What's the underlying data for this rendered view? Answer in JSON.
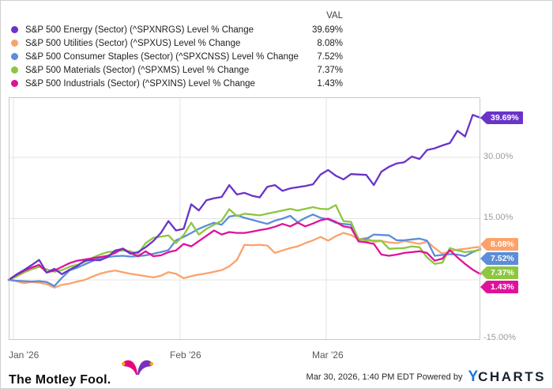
{
  "legend": {
    "val_header": "VAL"
  },
  "chart_data": {
    "type": "line",
    "title": "",
    "x_axis": {
      "tick_labels": [
        "Jan '26",
        "Feb '26",
        "Mar '26"
      ]
    },
    "y_axis": {
      "tick_labels": [
        "30.00%",
        "15.00%",
        "-15.00%"
      ],
      "ticks_pct": [
        30,
        15,
        -15
      ],
      "range_pct": [
        -15.0,
        44.7
      ],
      "unit": "%",
      "grid": true
    },
    "legend_position": "top",
    "series": [
      {
        "name": "S&P 500 Energy (Sector) (^SPXNRGS) Level % Change",
        "val": "39.69%",
        "color": "#6934c8",
        "values": [
          0,
          1.3,
          2.4,
          3.6,
          4.9,
          1.8,
          2.7,
          1.4,
          2.5,
          3.4,
          4.7,
          4.9,
          4.8,
          5.6,
          7.2,
          7.6,
          6.4,
          6.8,
          8.0,
          9.5,
          11.5,
          14.4,
          12.1,
          12.5,
          18.5,
          17.0,
          19.5,
          20.0,
          20.3,
          23.2,
          20.9,
          21.3,
          20.6,
          20.2,
          22.8,
          23.2,
          21.8,
          22.4,
          22.7,
          23.0,
          23.4,
          25.8,
          26.9,
          25.5,
          24.6,
          25.9,
          25.8,
          25.7,
          23.2,
          26.5,
          27.7,
          28.5,
          28.8,
          30.2,
          29.6,
          31.8,
          32.2,
          32.9,
          33.5,
          36.5,
          35.1,
          40.4,
          39.69
        ]
      },
      {
        "name": "S&P 500 Utilities (Sector) (^SPXUS) Level % Change",
        "val": "8.08%",
        "color": "#fba26b",
        "values": [
          0,
          -0.3,
          -0.8,
          -0.5,
          -0.7,
          -1.0,
          -1.9,
          -1.2,
          -0.9,
          -0.4,
          0.0,
          0.8,
          1.5,
          2.0,
          2.3,
          1.9,
          1.5,
          1.2,
          0.9,
          0.6,
          1.0,
          1.9,
          1.5,
          0.4,
          0.9,
          1.3,
          1.6,
          2.0,
          2.4,
          3.3,
          4.9,
          8.6,
          8.5,
          8.6,
          8.4,
          6.6,
          7.2,
          7.8,
          8.2,
          9.0,
          9.7,
          10.5,
          9.6,
          10.7,
          11.5,
          11.0,
          9.9,
          10.3,
          9.3,
          9.5,
          9.2,
          9.0,
          9.5,
          9.2,
          8.8,
          9.4,
          7.8,
          6.4,
          7.0,
          7.4,
          7.6,
          7.9,
          8.08
        ]
      },
      {
        "name": "S&P 500 Consumer Staples (Sector) (^SPXCNSS) Level % Change",
        "val": "7.52%",
        "color": "#5b8dd9",
        "values": [
          0,
          -0.2,
          -0.3,
          -0.4,
          -0.3,
          -0.5,
          -1.5,
          0.5,
          2.3,
          3.0,
          3.8,
          4.6,
          5.3,
          5.6,
          5.8,
          5.9,
          5.7,
          5.8,
          6.0,
          6.4,
          6.8,
          7.3,
          9.7,
          10.5,
          11.5,
          12.5,
          13.3,
          14.0,
          13.5,
          15.5,
          15.8,
          15.2,
          14.7,
          14.2,
          13.7,
          14.5,
          15.0,
          15.7,
          14.1,
          15.2,
          16.0,
          15.2,
          14.8,
          14.0,
          13.7,
          13.5,
          9.8,
          10.0,
          11.1,
          11.0,
          10.9,
          9.7,
          9.7,
          9.9,
          10.1,
          9.6,
          5.9,
          6.1,
          6.3,
          6.2,
          5.8,
          6.8,
          7.52
        ]
      },
      {
        "name": "S&P 500 Materials (Sector) (^SPXMS) Level % Change",
        "val": "7.37%",
        "color": "#8dc63f",
        "values": [
          0,
          0.8,
          1.8,
          2.6,
          3.2,
          2.6,
          2.0,
          2.4,
          3.2,
          3.7,
          4.4,
          5.4,
          6.2,
          6.8,
          7.0,
          7.2,
          7.0,
          6.4,
          9.0,
          10.3,
          10.6,
          10.9,
          9.0,
          11.0,
          14.0,
          11.1,
          12.5,
          13.5,
          14.5,
          17.3,
          15.6,
          16.2,
          16.0,
          15.8,
          16.2,
          16.6,
          17.0,
          17.4,
          17.0,
          17.4,
          17.8,
          17.4,
          17.3,
          18.3,
          14.4,
          14.2,
          10.0,
          9.6,
          9.6,
          9.6,
          7.6,
          7.7,
          7.8,
          8.2,
          8.0,
          5.5,
          3.9,
          4.2,
          7.8,
          7.2,
          6.8,
          7.0,
          7.37
        ]
      },
      {
        "name": "S&P 500 Industrials (Sector) (^SPXINS) Level % Change",
        "val": "1.43%",
        "color": "#e0119b",
        "values": [
          0,
          1.2,
          2.2,
          3.0,
          3.7,
          1.8,
          2.3,
          3.2,
          4.1,
          4.7,
          5.0,
          5.3,
          5.6,
          5.9,
          6.6,
          7.7,
          6.6,
          5.8,
          7.0,
          5.8,
          6.0,
          6.8,
          7.2,
          8.8,
          8.2,
          9.5,
          10.8,
          12.1,
          11.1,
          11.7,
          11.5,
          11.5,
          11.8,
          12.2,
          12.5,
          13.0,
          13.7,
          13.1,
          14.0,
          13.1,
          13.8,
          14.6,
          15.0,
          14.2,
          13.1,
          12.8,
          9.4,
          9.2,
          8.8,
          6.2,
          5.9,
          6.2,
          6.6,
          6.8,
          7.0,
          6.6,
          4.7,
          5.2,
          7.3,
          5.5,
          3.9,
          2.5,
          1.43
        ]
      }
    ]
  },
  "footer": {
    "brand": "The Motley Fool.",
    "timestamp": "Mar 30, 2026, 1:40 PM EDT",
    "powered_by": "Powered by",
    "ycharts_y": "Y",
    "ycharts_rest": "CHARTS"
  }
}
